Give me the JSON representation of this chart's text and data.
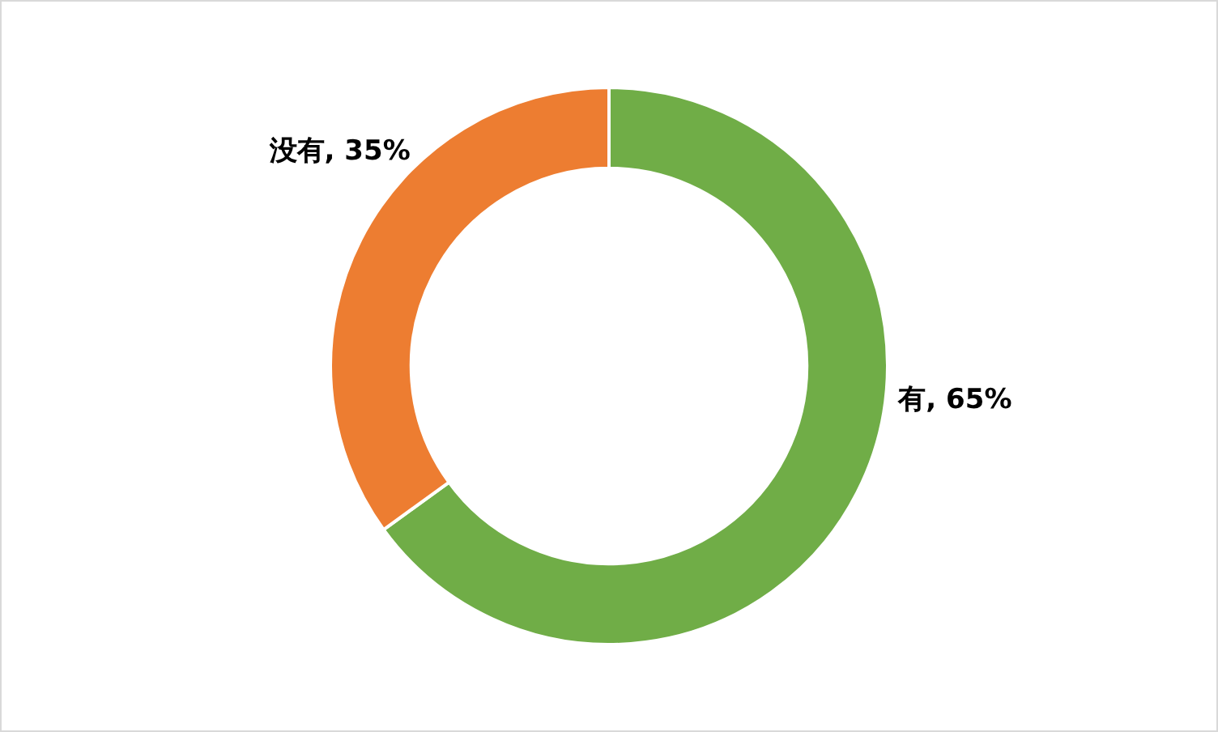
{
  "chart_data": {
    "type": "donut",
    "categories": [
      "有",
      "没有"
    ],
    "values": [
      65,
      35
    ],
    "colors": [
      "#70ad47",
      "#ed7d31"
    ],
    "value_labels": [
      "65%",
      "35%"
    ],
    "legend": false
  }
}
